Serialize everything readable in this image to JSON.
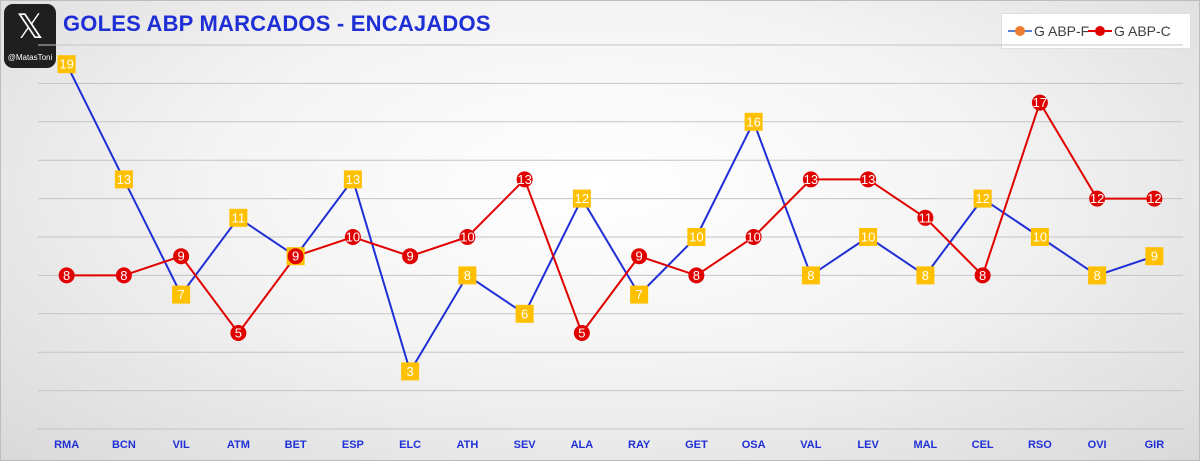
{
  "logo": {
    "mark": "𝕏",
    "handle": "@MatasToni"
  },
  "chart_data": {
    "type": "line",
    "title": "GOLES ABP MARCADOS - ENCAJADOS",
    "xlabel": "",
    "ylabel": "",
    "ylim": [
      0,
      20
    ],
    "grid": true,
    "legend_position": "top-right",
    "categories": [
      "RMA",
      "BCN",
      "VIL",
      "ATM",
      "BET",
      "ESP",
      "ELC",
      "ATH",
      "SEV",
      "ALA",
      "RAY",
      "GET",
      "OSA",
      "VAL",
      "LEV",
      "MAL",
      "CEL",
      "RSO",
      "OVI",
      "GIR"
    ],
    "series": [
      {
        "name": "G ABP-F",
        "color": "#1f2fd6",
        "marker_color": "#ffc000",
        "marker": "square",
        "values": [
          19,
          13,
          7,
          11,
          9,
          13,
          3,
          8,
          6,
          12,
          7,
          10,
          16,
          8,
          10,
          8,
          12,
          10,
          8,
          9
        ]
      },
      {
        "name": "G ABP-C",
        "color": "#e00000",
        "marker_color": "#e00000",
        "marker": "circle",
        "values": [
          8,
          8,
          9,
          5,
          9,
          10,
          9,
          10,
          13,
          5,
          9,
          8,
          10,
          13,
          13,
          11,
          8,
          17,
          12,
          12
        ]
      }
    ]
  },
  "legend": {
    "items": [
      {
        "label": "G ABP-F",
        "line_color": "#5b7fd6",
        "dot_color": "#ed7d31"
      },
      {
        "label": "G ABP-C",
        "line_color": "#e00000",
        "dot_color": "#e00000"
      }
    ]
  }
}
